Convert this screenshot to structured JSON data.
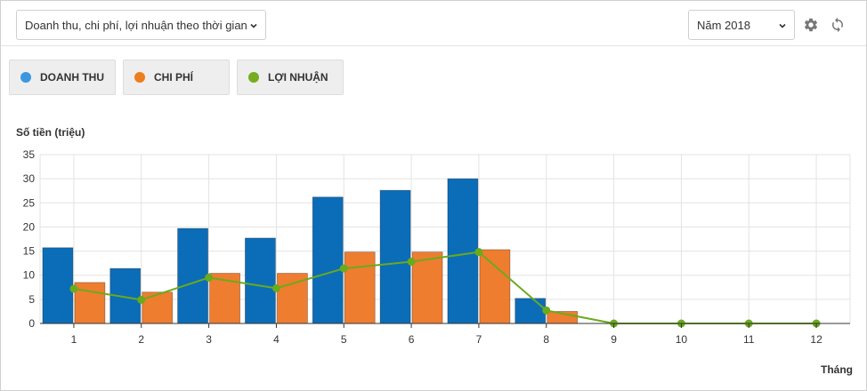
{
  "toolbar": {
    "metric_select": {
      "value": "Doanh thu, chi phí, lợi nhuận theo thời gian"
    },
    "year_select": {
      "value": "Năm 2018"
    },
    "settings_icon": "gear-icon",
    "refresh_icon": "refresh-icon"
  },
  "legend": [
    {
      "label": "DOANH THU",
      "color": "#3d97e0"
    },
    {
      "label": "CHI PHÍ",
      "color": "#ee7d1e"
    },
    {
      "label": "LỢI NHUẬN",
      "color": "#75ad20"
    }
  ],
  "chart_data": {
    "type": "bar",
    "ylabel": "Số tiền (triệu)",
    "xlabel": "Tháng",
    "ylim": [
      0,
      35
    ],
    "yticks": [
      0,
      5,
      10,
      15,
      20,
      25,
      30,
      35
    ],
    "grid": true,
    "categories": [
      "1",
      "2",
      "3",
      "4",
      "5",
      "6",
      "7",
      "8",
      "9",
      "10",
      "11",
      "12"
    ],
    "series": [
      {
        "name": "DOANH THU",
        "type": "bar",
        "color": "#0b6db8",
        "values": [
          15.7,
          11.4,
          19.7,
          17.7,
          26.2,
          27.6,
          30.0,
          5.2,
          0,
          0,
          0,
          0
        ]
      },
      {
        "name": "CHI PHÍ",
        "type": "bar",
        "color": "#ee7d30",
        "values": [
          8.5,
          6.5,
          10.4,
          10.4,
          14.8,
          14.8,
          15.3,
          2.5,
          0,
          0,
          0,
          0
        ]
      },
      {
        "name": "LỢI NHUẬN",
        "type": "line",
        "color": "#6aaa1d",
        "values": [
          7.2,
          4.9,
          9.5,
          7.3,
          11.4,
          12.8,
          14.8,
          2.7,
          0,
          0,
          0,
          0
        ]
      }
    ]
  }
}
